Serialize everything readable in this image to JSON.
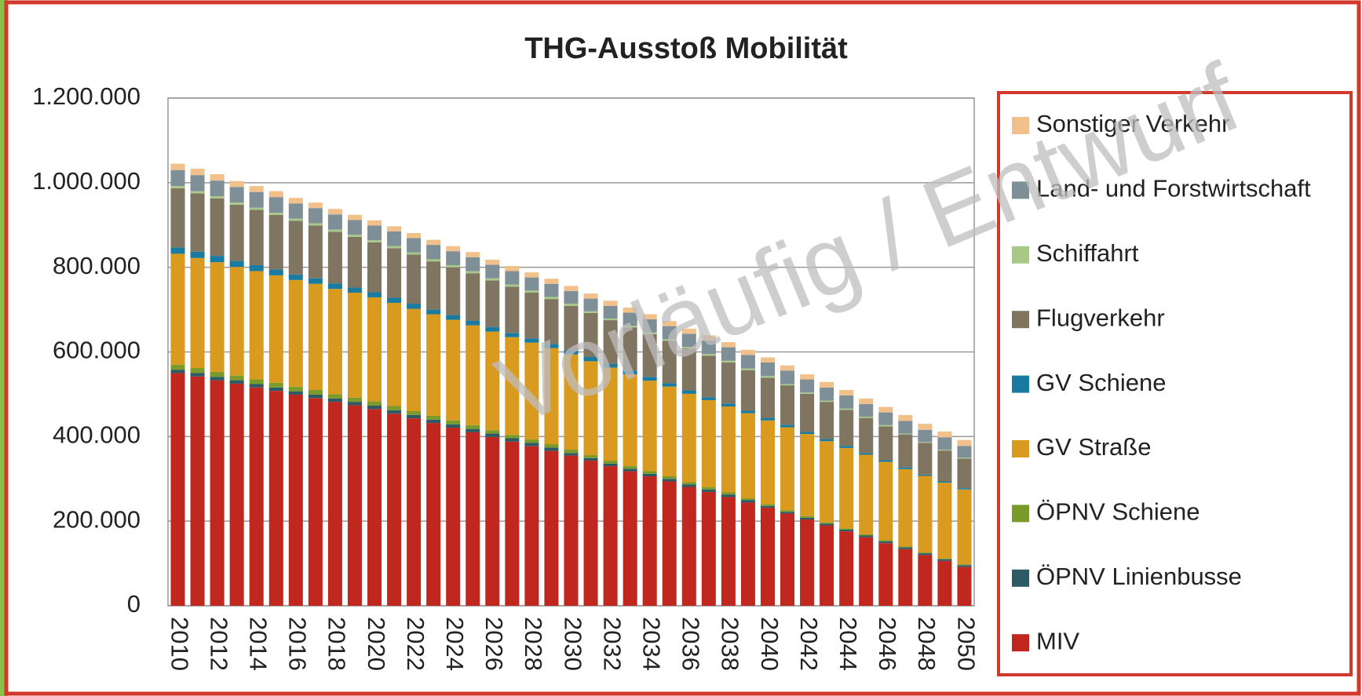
{
  "chart_data": {
    "type": "stacked_bar",
    "title": "THG-Ausstoß Mobilität",
    "annotation": "Vorläufig / Entwurf",
    "categories": [
      "2010",
      null,
      "2012",
      null,
      "2014",
      null,
      "2016",
      null,
      "2018",
      null,
      "2020",
      null,
      "2022",
      null,
      "2024",
      null,
      "2026",
      null,
      "2028",
      null,
      "2030",
      null,
      "2032",
      null,
      "2034",
      null,
      "2036",
      null,
      "2038",
      null,
      "2040",
      null,
      "2042",
      null,
      "2044",
      null,
      "2046",
      null,
      "2048",
      null,
      "2050"
    ],
    "ylim": [
      0,
      1200000
    ],
    "yticks": [
      0,
      {
        "value": 200000,
        "label": "200.000"
      },
      {
        "value": 400000,
        "label": "400.000"
      },
      {
        "value": 600000,
        "label": "600.000"
      },
      {
        "value": 800000,
        "label": "800.000"
      },
      {
        "value": 1000000,
        "label": "1.000.000"
      },
      {
        "value": 1200000,
        "label": "1.200.000"
      }
    ],
    "grid": true,
    "legend": "right",
    "series": [
      {
        "name": "MIV",
        "color": "#c0281f",
        "values": [
          550000,
          542000,
          533000,
          525000,
          516000,
          508000,
          499000,
          491000,
          482000,
          474000,
          465000,
          454000,
          443000,
          432000,
          421000,
          410000,
          399000,
          388000,
          377000,
          366000,
          355000,
          343000,
          330000,
          318000,
          306000,
          294000,
          281000,
          269000,
          257000,
          244000,
          232000,
          218000,
          204000,
          190000,
          176000,
          162000,
          148000,
          134000,
          120000,
          106000,
          92000
        ]
      },
      {
        "name": "ÖPNV Linienbusse",
        "color": "#2e5a66",
        "values": [
          8000,
          8000,
          8000,
          8000,
          8000,
          8000,
          8000,
          8000,
          8000,
          8000,
          8000,
          8000,
          8000,
          8000,
          8000,
          8000,
          8000,
          8000,
          8000,
          8000,
          6000,
          6000,
          6000,
          6000,
          6000,
          6000,
          6000,
          6000,
          6000,
          6000,
          4000,
          4000,
          4000,
          4000,
          4000,
          4000,
          4000,
          4000,
          4000,
          4000,
          4000
        ]
      },
      {
        "name": "ÖPNV Schiene",
        "color": "#7a9a2a",
        "values": [
          12000,
          12000,
          12000,
          11000,
          11000,
          11000,
          11000,
          11000,
          10000,
          10000,
          10000,
          10000,
          9000,
          9000,
          9000,
          9000,
          8000,
          8000,
          8000,
          8000,
          8000,
          7000,
          7000,
          6000,
          6000,
          6000,
          5000,
          5000,
          5000,
          4000,
          4000,
          4000,
          4000,
          3000,
          3000,
          3000,
          3000,
          2000,
          2000,
          2000,
          2000
        ]
      },
      {
        "name": "GV Straße",
        "color": "#d99a20",
        "values": [
          262000,
          260000,
          259000,
          257000,
          256000,
          254000,
          252000,
          251000,
          249000,
          248000,
          246000,
          244000,
          242000,
          240000,
          238000,
          236000,
          233000,
          231000,
          229000,
          227000,
          225000,
          222000,
          220000,
          217000,
          214000,
          212000,
          209000,
          206000,
          203000,
          201000,
          198000,
          196000,
          194000,
          192000,
          190000,
          188000,
          185000,
          183000,
          181000,
          179000,
          177000
        ]
      },
      {
        "name": "GV Schiene",
        "color": "#1a7ba0",
        "values": [
          15000,
          15000,
          15000,
          14000,
          14000,
          14000,
          13000,
          13000,
          13000,
          12000,
          12000,
          12000,
          12000,
          11000,
          11000,
          11000,
          11000,
          10000,
          10000,
          10000,
          10000,
          10000,
          9000,
          9000,
          9000,
          8000,
          8000,
          7000,
          7000,
          6000,
          6000,
          6000,
          5000,
          5000,
          5000,
          4000,
          4000,
          4000,
          3000,
          3000,
          3000
        ]
      },
      {
        "name": "Flugverkehr",
        "color": "#7f7560",
        "values": [
          140000,
          138000,
          136000,
          133000,
          131000,
          129000,
          127000,
          125000,
          122000,
          120000,
          118000,
          117000,
          116000,
          114000,
          113000,
          112000,
          110000,
          109000,
          108000,
          106000,
          105000,
          104000,
          103000,
          102000,
          101000,
          100000,
          99000,
          98000,
          97000,
          96000,
          95000,
          93000,
          90000,
          88000,
          85000,
          83000,
          80000,
          78000,
          75000,
          73000,
          70000
        ]
      },
      {
        "name": "Schiffahrt",
        "color": "#a8c888",
        "values": [
          5000,
          5000,
          5000,
          5000,
          5000,
          5000,
          5000,
          5000,
          5000,
          5000,
          5000,
          5000,
          5000,
          5000,
          5000,
          5000,
          5000,
          5000,
          5000,
          5000,
          5000,
          4000,
          4000,
          4000,
          4000,
          4000,
          4000,
          4000,
          4000,
          4000,
          4000,
          3000,
          3000,
          3000,
          3000,
          3000,
          3000,
          2000,
          2000,
          2000,
          2000
        ]
      },
      {
        "name": "Land- und Forstwirtschaft",
        "color": "#7f8f98",
        "values": [
          38000,
          38000,
          37000,
          37000,
          37000,
          37000,
          36000,
          36000,
          36000,
          35000,
          35000,
          35000,
          34000,
          34000,
          33000,
          33000,
          32000,
          32000,
          31000,
          31000,
          30000,
          30000,
          30000,
          31000,
          31000,
          31000,
          31000,
          32000,
          32000,
          32000,
          32000,
          32000,
          31000,
          31000,
          31000,
          30000,
          30000,
          30000,
          29000,
          29000,
          28000
        ]
      },
      {
        "name": "Sonstiger Verkehr",
        "color": "#f2c08a",
        "values": [
          15000,
          15000,
          15000,
          14000,
          14000,
          14000,
          13000,
          13000,
          13000,
          12000,
          12000,
          12000,
          12000,
          12000,
          12000,
          12000,
          12000,
          12000,
          12000,
          12000,
          12000,
          12000,
          12000,
          12000,
          12000,
          12000,
          12000,
          12000,
          12000,
          12000,
          12000,
          12000,
          12000,
          13000,
          13000,
          13000,
          13000,
          14000,
          14000,
          14000,
          14000
        ]
      }
    ]
  }
}
